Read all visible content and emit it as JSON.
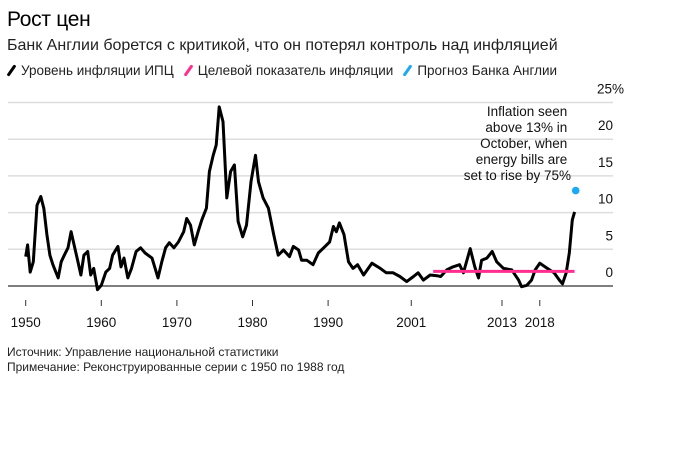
{
  "header": {
    "title": "Рост цен",
    "subtitle": "Банк Англии борется с критикой, что он потерял контроль над инфляцией"
  },
  "legend": [
    {
      "label": "Уровень инфляции ИПЦ",
      "color": "#000000"
    },
    {
      "label": "Целевой показатель инфляции",
      "color": "#ff2e8f"
    },
    {
      "label": "Прогноз Банка Англии",
      "color": "#1aaaf5"
    }
  ],
  "footer": {
    "source": "Источник: Управление национальной статистики",
    "note": "Примечание: Реконструированные серии с 1950 по 1988 год"
  },
  "chart_data": {
    "type": "line",
    "title": "Рост цен",
    "xlabel": "",
    "ylabel": "",
    "xlim": [
      1949.0,
      2026.5
    ],
    "ylim": [
      0,
      25
    ],
    "grid": true,
    "y_ticks": [
      {
        "value": 25,
        "label": "25%"
      },
      {
        "value": 20,
        "label": "20"
      },
      {
        "value": 15,
        "label": "15"
      },
      {
        "value": 10,
        "label": "10"
      },
      {
        "value": 5,
        "label": "5"
      },
      {
        "value": 0,
        "label": "0"
      }
    ],
    "x_ticks": [
      {
        "value": 1950,
        "label": "1950"
      },
      {
        "value": 1960,
        "label": "1960"
      },
      {
        "value": 1970,
        "label": "1970"
      },
      {
        "value": 1980,
        "label": "1980"
      },
      {
        "value": 1990,
        "label": "1990"
      },
      {
        "value": 2001,
        "label": "2001"
      },
      {
        "value": 2013,
        "label": "2013"
      },
      {
        "value": 2018,
        "label": "2018"
      }
    ],
    "series": [
      {
        "name": "Уровень инфляции ИПЦ",
        "color": "#000000",
        "x": [
          1950.0,
          1950.25,
          1950.6,
          1951.0,
          1951.5,
          1952.0,
          1952.4,
          1952.8,
          1953.2,
          1953.6,
          1954.3,
          1954.7,
          1955.1,
          1955.6,
          1956.0,
          1956.4,
          1956.8,
          1957.3,
          1957.7,
          1958.2,
          1958.6,
          1959.0,
          1959.5,
          1960.0,
          1960.6,
          1961.1,
          1961.5,
          1962.2,
          1962.6,
          1963.0,
          1963.5,
          1964.0,
          1964.6,
          1965.2,
          1965.8,
          1966.7,
          1967.5,
          1968.0,
          1968.5,
          1969.0,
          1969.6,
          1970.2,
          1970.9,
          1971.3,
          1971.8,
          1972.3,
          1972.8,
          1973.3,
          1973.9,
          1974.3,
          1974.8,
          1975.2,
          1975.6,
          1976.1,
          1976.6,
          1977.1,
          1977.6,
          1978.1,
          1978.7,
          1979.2,
          1979.8,
          1980.4,
          1980.8,
          1981.4,
          1982.1,
          1982.8,
          1983.4,
          1984.1,
          1984.9,
          1985.4,
          1986.1,
          1986.5,
          1987.2,
          1988.0,
          1988.7,
          1989.6,
          1990.2,
          1990.7,
          1991.1,
          1991.5,
          1992.1,
          1992.7,
          1993.3,
          1993.9,
          1994.7,
          1995.8,
          1996.9,
          1997.7,
          1998.6,
          1999.5,
          2000.4,
          2001.3,
          2001.9,
          2002.6,
          2003.5,
          2004.4,
          2004.9,
          2005.7,
          2006.5,
          2007.4,
          2007.9,
          2008.8,
          2009.4,
          2009.9,
          2010.3,
          2011.0,
          2011.7,
          2012.3,
          2013.2,
          2014.3,
          2015.2,
          2015.6,
          2016.3,
          2016.9,
          2017.4,
          2018.0,
          2018.7,
          2019.3,
          2019.9,
          2020.6,
          2021.0,
          2021.5,
          2021.9,
          2022.3,
          2022.6
        ],
        "values": [
          4.0,
          5.6,
          1.9,
          3.3,
          11.0,
          12.2,
          10.6,
          7.0,
          4.2,
          2.9,
          1.1,
          3.3,
          4.2,
          5.2,
          7.4,
          5.6,
          3.8,
          1.5,
          4.2,
          4.7,
          1.5,
          2.4,
          -0.5,
          0.1,
          1.9,
          2.4,
          4.2,
          5.4,
          2.6,
          3.8,
          1.1,
          2.4,
          4.7,
          5.2,
          4.5,
          3.8,
          1.1,
          3.3,
          5.2,
          5.9,
          5.2,
          6.0,
          7.4,
          9.2,
          8.3,
          5.6,
          7.4,
          9.0,
          10.6,
          15.6,
          17.8,
          19.2,
          24.4,
          22.4,
          12.0,
          15.6,
          16.5,
          8.8,
          6.7,
          8.3,
          14.2,
          17.8,
          14.2,
          12.0,
          10.6,
          7.0,
          4.2,
          4.9,
          4.0,
          5.4,
          4.9,
          3.5,
          3.5,
          2.9,
          4.5,
          5.4,
          6.0,
          8.1,
          7.4,
          8.6,
          7.0,
          3.3,
          2.4,
          2.9,
          1.5,
          3.1,
          2.4,
          1.8,
          1.8,
          1.3,
          0.6,
          1.3,
          1.8,
          0.8,
          1.5,
          1.4,
          1.3,
          2.2,
          2.6,
          2.9,
          1.8,
          5.1,
          2.6,
          1.1,
          3.5,
          3.8,
          4.7,
          3.3,
          2.4,
          2.2,
          0.8,
          -0.1,
          0.1,
          0.8,
          2.2,
          3.1,
          2.6,
          2.2,
          1.8,
          0.8,
          0.3,
          1.8,
          4.5,
          9.0,
          10.1
        ]
      },
      {
        "name": "Целевой показатель инфляции",
        "color": "#ff2e8f",
        "x": [
          2003.9,
          2022.6
        ],
        "values": [
          2,
          2
        ]
      },
      {
        "name": "Прогноз Банка Англии",
        "color": "#1aaaf5",
        "x": [
          2022.75
        ],
        "values": [
          13
        ]
      }
    ],
    "annotations": [
      {
        "lines": [
          "Inflation seen",
          "above 13% in",
          "October, when",
          "energy bills are",
          "set to rise by 75%"
        ]
      }
    ]
  }
}
